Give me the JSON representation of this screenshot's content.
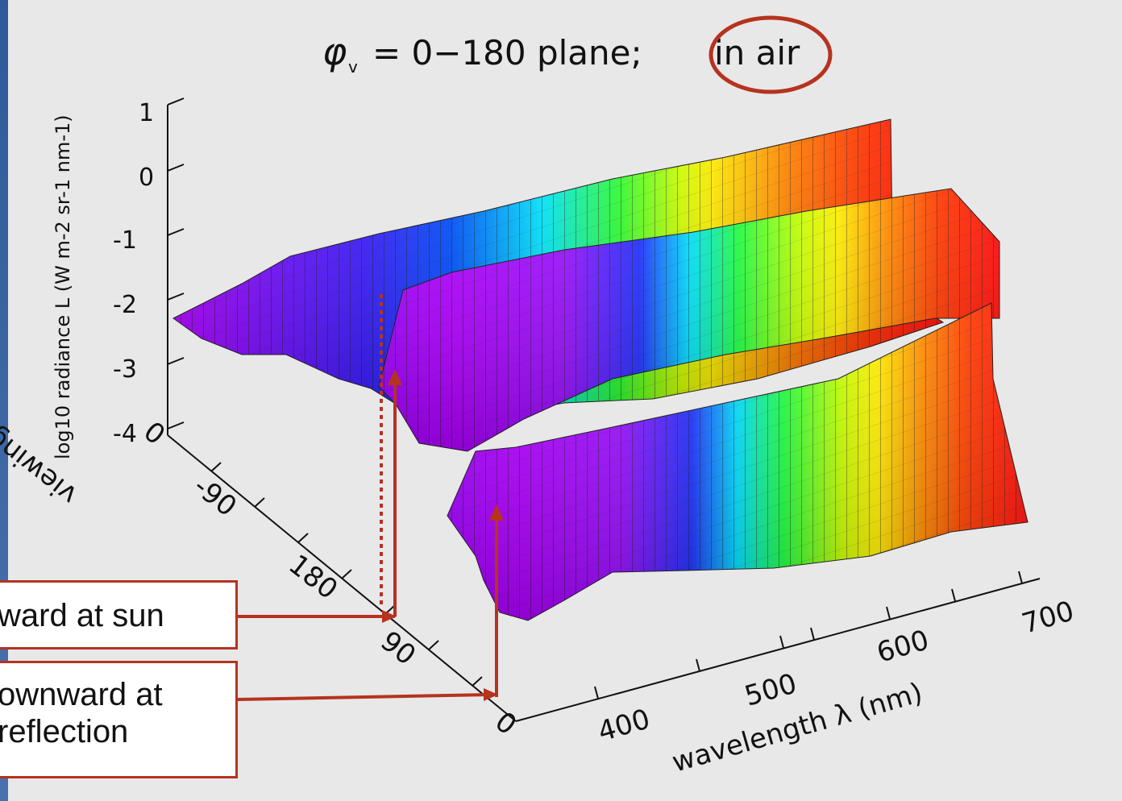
{
  "chart_data": {
    "type": "surface",
    "title": "φv = 0−180 plane; in air",
    "title_highlight": "in air",
    "xlabel": "wavelength λ (nm)",
    "ylabel": "viewing (deg)",
    "zlabel": "log10 radiance L (W m-2 sr-1 nm-1)",
    "x_ticks": [
      "400",
      "500",
      "600",
      "700"
    ],
    "y_ticks": [
      "0",
      "90",
      "180",
      "-90",
      "0"
    ],
    "z_ticks": [
      "1",
      "0",
      "-1",
      "-2",
      "-3",
      "-4"
    ],
    "xlim": [
      350,
      700
    ],
    "zlim": [
      -4,
      1
    ],
    "colormap": "wavelength spectrum (violet→red)",
    "annotations": [
      {
        "text": "Upward at sun",
        "visible_text": "ward at sun",
        "color": "#b5331f"
      },
      {
        "text": "Downward at reflection",
        "visible_text_line1": "ownward at",
        "visible_text_line2": "reflection",
        "color": "#b5331f"
      }
    ]
  },
  "title_parts": {
    "lead": "= 0−180 plane;",
    "symbol": "φ",
    "sub": "v",
    "highlight": "in air"
  },
  "callouts": {
    "upward": "ward at sun",
    "downward_line1": "ownward at",
    "downward_line2": "reflection"
  },
  "colors": {
    "annotation": "#b5331f",
    "background": "#e8e8e8",
    "slide": "#3d64a0"
  }
}
